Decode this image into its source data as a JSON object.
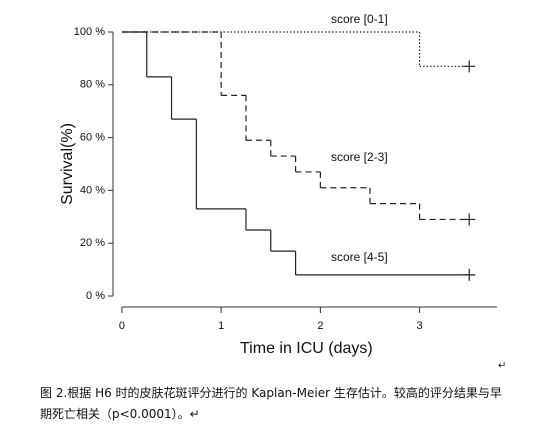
{
  "chart_data": {
    "type": "step",
    "x_label": "Time in ICU (days)",
    "y_label": "Survival(%)",
    "xlim": [
      -0.09,
      3.78
    ],
    "ylim": [
      0,
      100
    ],
    "xticks": [
      0,
      1,
      2,
      3
    ],
    "yticks": [
      {
        "value": 0,
        "label": "0 %"
      },
      {
        "value": 20,
        "label": "20 %"
      },
      {
        "value": 40,
        "label": "40 %"
      },
      {
        "value": 60,
        "label": "60 %"
      },
      {
        "value": 80,
        "label": "80 %"
      },
      {
        "value": 100,
        "label": "100 %"
      }
    ],
    "series": [
      {
        "name": "score [0-1]",
        "color": "#222222",
        "dash": "dotted",
        "x": [
          0,
          3.0,
          3.5
        ],
        "values": [
          100,
          87,
          87
        ]
      },
      {
        "name": "score [2-3]",
        "color": "#222222",
        "dash": "dashed",
        "x": [
          0,
          1.0,
          1.25,
          1.5,
          1.75,
          2.0,
          2.5,
          3.0,
          3.5
        ],
        "values": [
          100,
          76,
          59,
          53,
          47,
          41,
          35,
          29,
          29
        ]
      },
      {
        "name": "score [4-5]",
        "color": "#222222",
        "dash": "solid",
        "x": [
          0,
          0.25,
          0.5,
          0.75,
          1.25,
          1.5,
          1.75,
          3.5
        ],
        "values": [
          100,
          83,
          67,
          33,
          25,
          17,
          8,
          8
        ]
      }
    ]
  },
  "paragraph_mark": "↵",
  "caption": [
    "图 2.根据 H6 时的皮肤花斑评分进行的 Kaplan-Meier 生存估计。较高的评分结果与早",
    "期死亡相关（p<0.0001）。↵"
  ]
}
